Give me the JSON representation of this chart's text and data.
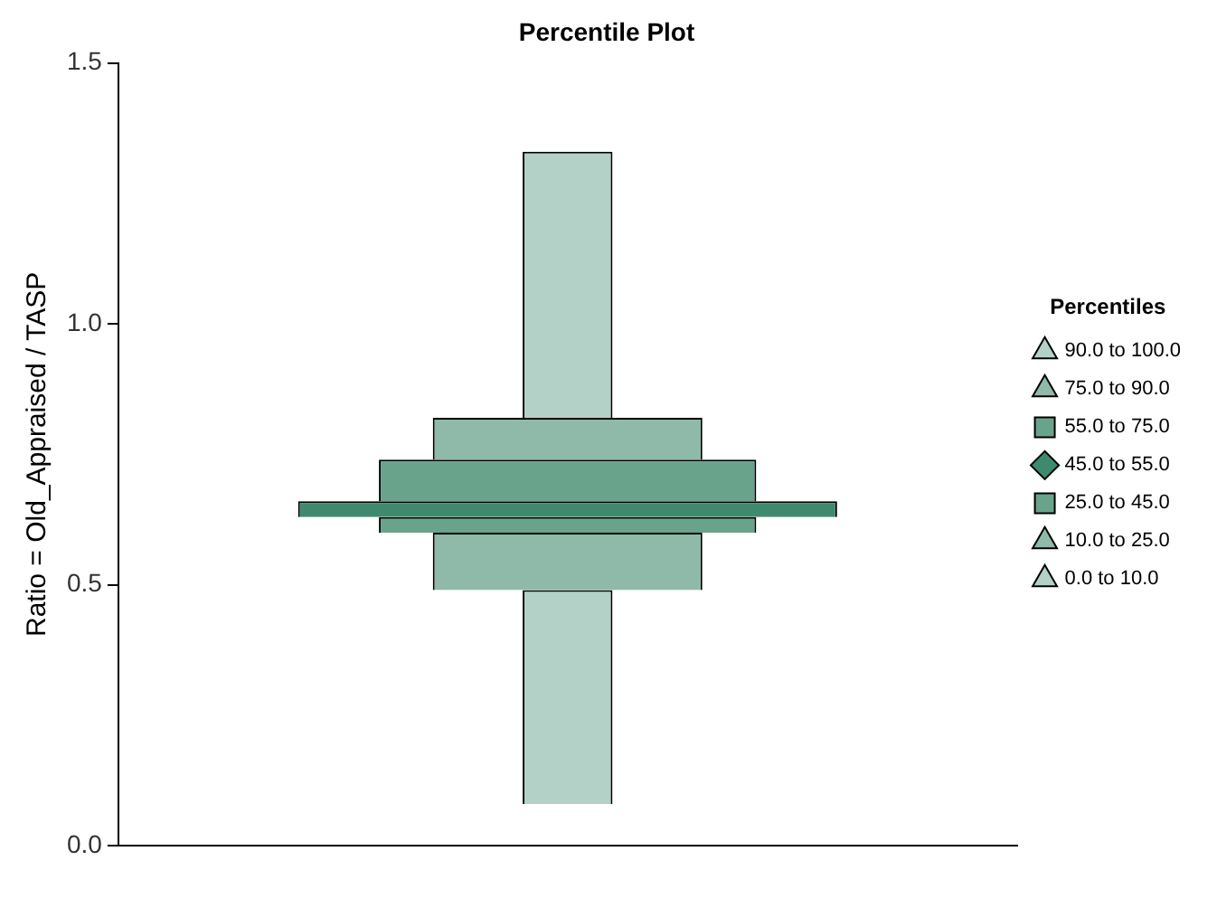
{
  "chart_data": {
    "type": "bar",
    "title": "Percentile Plot",
    "ylabel": "Ratio = Old_Appraised / TASP",
    "legend_title": "Percentiles",
    "legend": "right",
    "grid": false,
    "categories": [
      null
    ],
    "ylim": [
      0,
      1.5
    ],
    "yticks": [
      {
        "value": 0,
        "label": "0.0"
      },
      {
        "value": 0.5,
        "label": "0.5"
      },
      {
        "value": 1,
        "label": "1.0"
      },
      {
        "value": 1.5,
        "label": "1.5"
      }
    ],
    "series": [
      {
        "name": "90.0 to 100.0",
        "color": "#b3d1c6",
        "base": [
          0.82
        ],
        "values": [
          0.51
        ]
      },
      {
        "name": "75.0 to 90.0",
        "color": "#8fb9a8",
        "base": [
          0.74
        ],
        "values": [
          0.08
        ]
      },
      {
        "name": "55.0 to 75.0",
        "color": "#6aa38c",
        "base": [
          0.66
        ],
        "values": [
          0.08
        ]
      },
      {
        "name": "45.0 to 55.0",
        "color": "#3f8a6e",
        "base": [
          0.63
        ],
        "values": [
          0.03
        ]
      },
      {
        "name": "25.0 to 45.0",
        "color": "#6aa38c",
        "base": [
          0.6
        ],
        "values": [
          0.03
        ]
      },
      {
        "name": "10.0 to 25.0",
        "color": "#8fb9a8",
        "base": [
          0.49
        ],
        "values": [
          0.11
        ]
      },
      {
        "name": "0.0 to 10.0",
        "color": "#b3d1c6",
        "base": [
          0.08
        ],
        "values": [
          0.41
        ]
      }
    ]
  }
}
